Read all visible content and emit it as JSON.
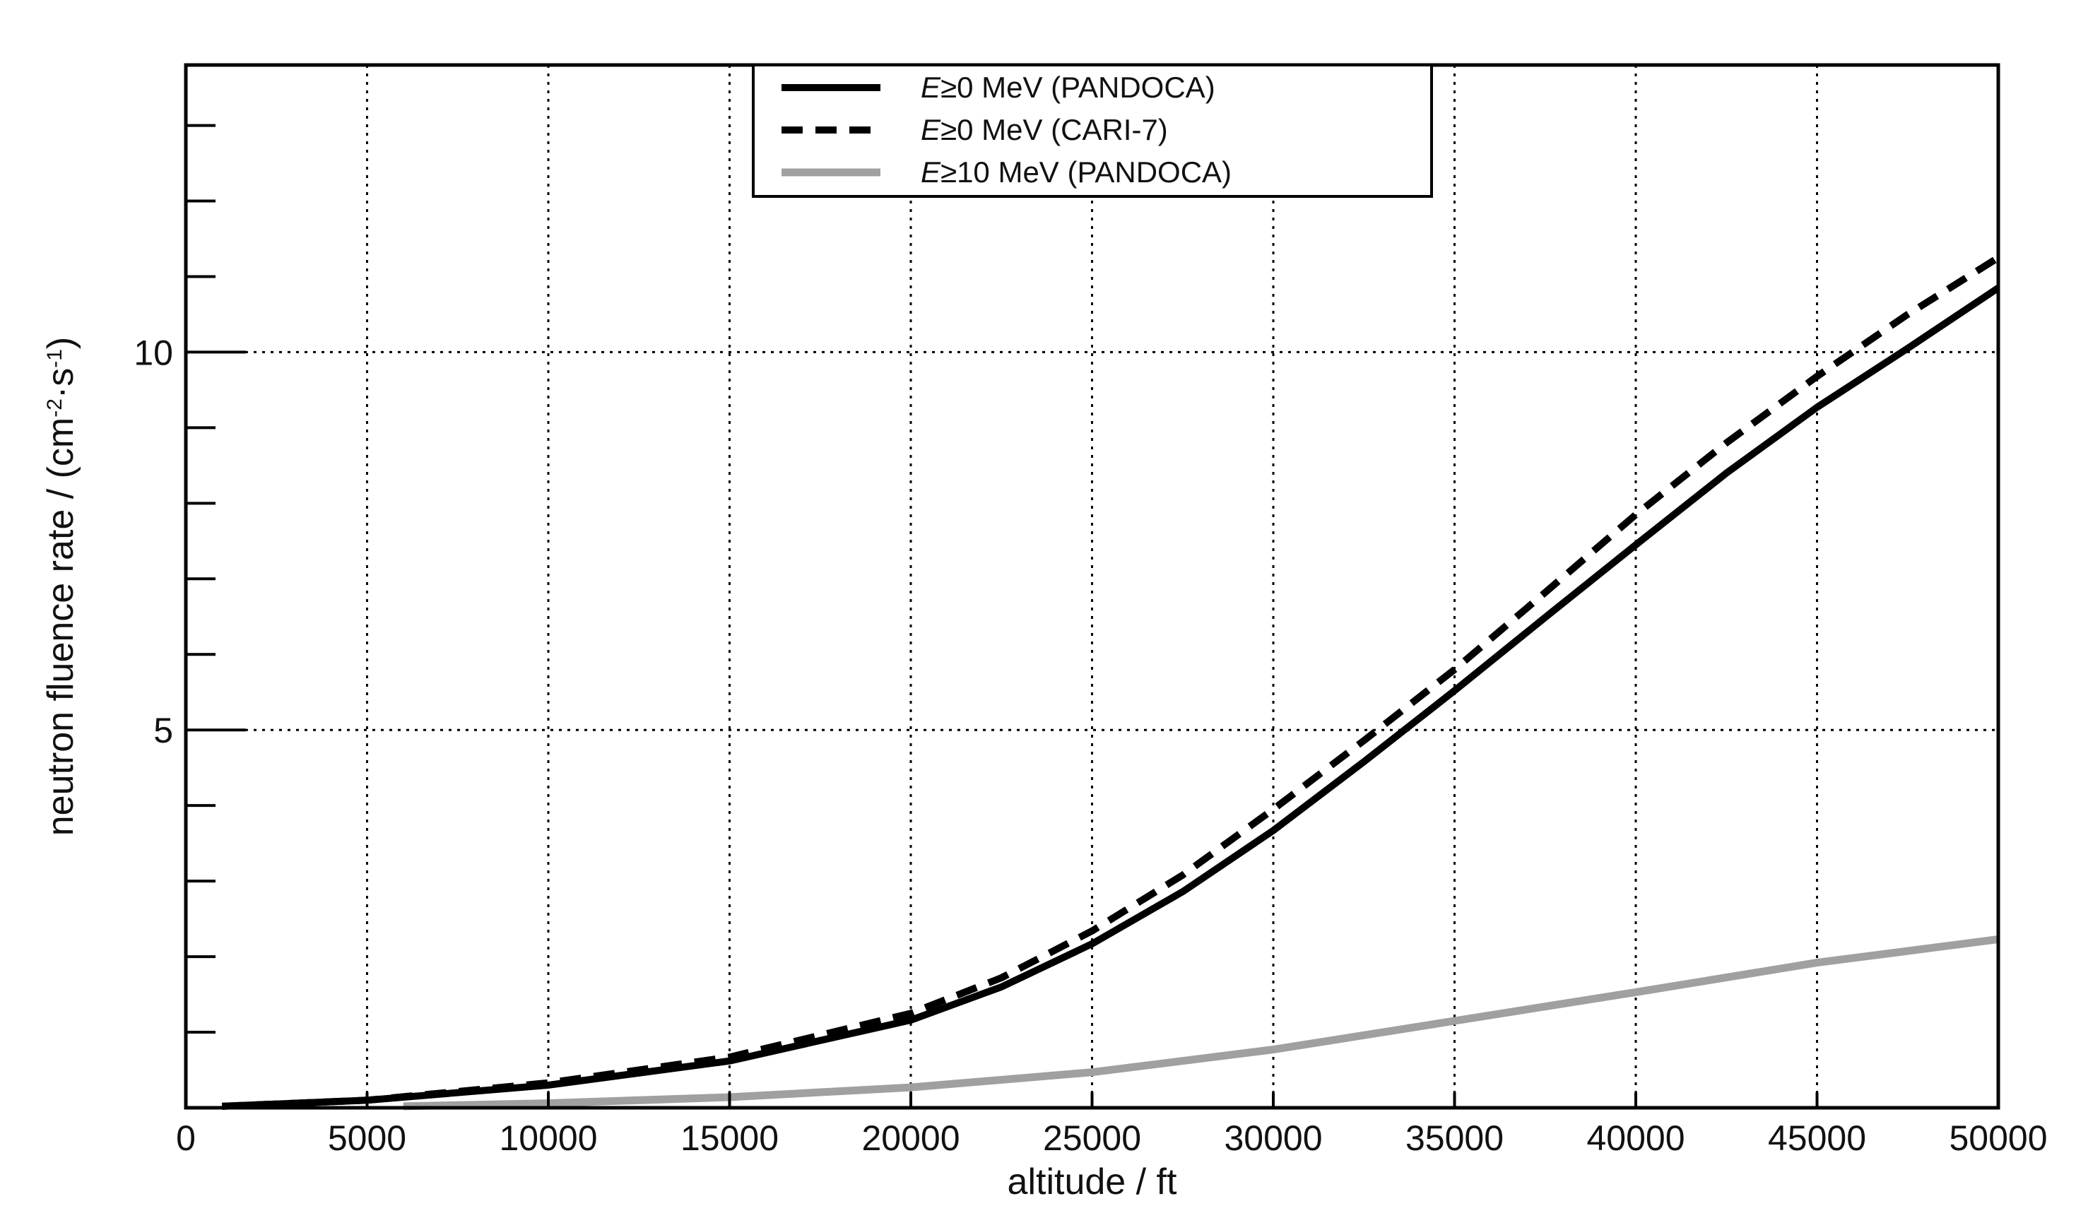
{
  "chart_data": {
    "type": "line",
    "title": "",
    "xlabel": "altitude / ft",
    "ylabel_parts": [
      "neutron fluence rate / (cm",
      "-2",
      "·s",
      "-1",
      ")"
    ],
    "xlim": [
      0,
      50000
    ],
    "ylim": [
      0,
      13.8
    ],
    "xticks": [
      0,
      5000,
      10000,
      15000,
      20000,
      25000,
      30000,
      35000,
      40000,
      45000,
      50000
    ],
    "xtick_labels": [
      "0",
      "5000",
      "10000",
      "15000",
      "20000",
      "25000",
      "30000",
      "35000",
      "40000",
      "45000",
      "50000"
    ],
    "yticks_labeled": [
      5,
      10
    ],
    "ytick_labels": [
      "5",
      "10"
    ],
    "yticks_minor": [
      1,
      2,
      3,
      4,
      6,
      7,
      8,
      9,
      11,
      12,
      13
    ],
    "grid": true,
    "legend_position": "top-center",
    "series": [
      {
        "name_italic": "E",
        "name_rest": "≥0 MeV (PANDOCA)",
        "style": "solid",
        "color": "#000000",
        "x": [
          1000,
          5000,
          10000,
          15000,
          20000,
          22500,
          25000,
          27500,
          30000,
          32500,
          35000,
          37500,
          40000,
          42500,
          45000,
          47500,
          50000
        ],
        "y": [
          0.02,
          0.1,
          0.3,
          0.62,
          1.16,
          1.6,
          2.17,
          2.86,
          3.67,
          4.58,
          5.52,
          6.49,
          7.45,
          8.4,
          9.27,
          10.05,
          10.85
        ]
      },
      {
        "name_italic": "E",
        "name_rest": "≥0 MeV (CARI-7)",
        "style": "dashed",
        "color": "#000000",
        "x": [
          1000,
          5000,
          10000,
          15000,
          20000,
          22500,
          25000,
          27500,
          30000,
          32500,
          35000,
          37500,
          40000,
          42500,
          45000,
          47500,
          50000
        ],
        "y": [
          0.02,
          0.1,
          0.33,
          0.67,
          1.25,
          1.72,
          2.34,
          3.08,
          3.95,
          4.86,
          5.8,
          6.82,
          7.85,
          8.8,
          9.68,
          10.5,
          11.25
        ]
      },
      {
        "name_italic": "E",
        "name_rest": "≥10 MeV (PANDOCA)",
        "style": "solid",
        "color": "#a0a0a0",
        "x": [
          6000,
          10000,
          15000,
          20000,
          25000,
          30000,
          35000,
          40000,
          45000,
          50000
        ],
        "y": [
          0.02,
          0.06,
          0.14,
          0.27,
          0.47,
          0.77,
          1.15,
          1.53,
          1.92,
          2.23
        ]
      }
    ]
  }
}
